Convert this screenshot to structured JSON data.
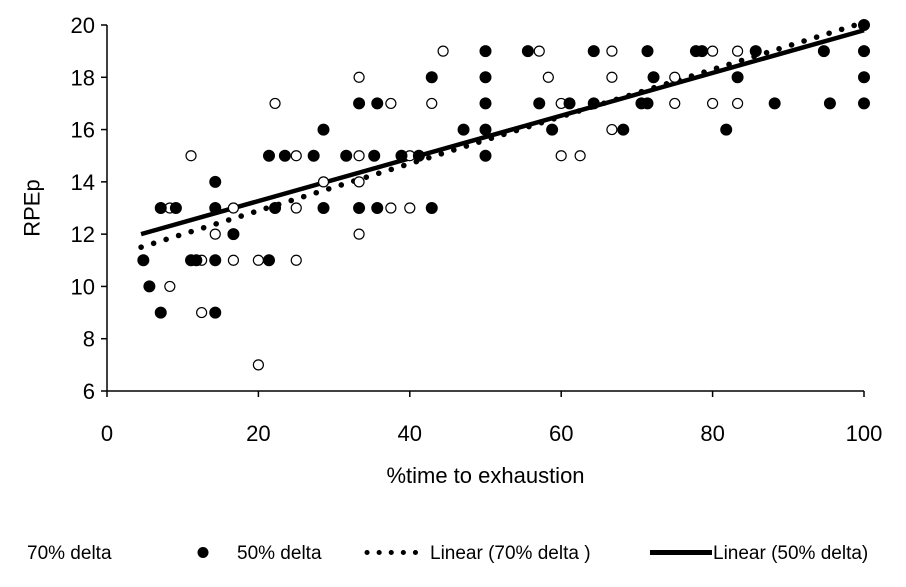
{
  "chart_data": {
    "type": "scatter",
    "xlabel": "%time to exhaustion",
    "ylabel": "RPEp",
    "xlim": [
      0,
      100
    ],
    "ylim": [
      6,
      20
    ],
    "xticks": [
      "0",
      "20",
      "40",
      "60",
      "80",
      "100"
    ],
    "yticks": [
      "6",
      "8",
      "10",
      "12",
      "14",
      "16",
      "18",
      "20"
    ],
    "grid": false,
    "legend_position": "bottom",
    "series": [
      {
        "name": "70% delta",
        "marker": "open-circle",
        "color": "#000000",
        "points": [
          [
            8.3,
            10
          ],
          [
            8.3,
            13
          ],
          [
            11.1,
            15
          ],
          [
            12.5,
            9
          ],
          [
            12.5,
            11
          ],
          [
            14.3,
            12
          ],
          [
            14.3,
            13
          ],
          [
            16.7,
            11
          ],
          [
            16.7,
            13
          ],
          [
            20,
            7
          ],
          [
            20,
            11
          ],
          [
            22.2,
            17
          ],
          [
            25,
            11
          ],
          [
            25,
            13
          ],
          [
            25,
            15
          ],
          [
            28.6,
            13
          ],
          [
            28.6,
            14
          ],
          [
            33.3,
            12
          ],
          [
            33.3,
            14
          ],
          [
            33.3,
            15
          ],
          [
            33.3,
            18
          ],
          [
            37.5,
            13
          ],
          [
            37.5,
            17
          ],
          [
            40,
            13
          ],
          [
            40,
            15
          ],
          [
            42.9,
            17
          ],
          [
            44.4,
            19
          ],
          [
            50,
            16
          ],
          [
            57.1,
            19
          ],
          [
            58.3,
            18
          ],
          [
            60,
            15
          ],
          [
            60,
            17
          ],
          [
            62.5,
            15
          ],
          [
            66.7,
            16
          ],
          [
            66.7,
            18
          ],
          [
            66.7,
            19
          ],
          [
            71.4,
            17
          ],
          [
            75,
            17
          ],
          [
            75,
            18
          ],
          [
            80,
            17
          ],
          [
            80,
            19
          ],
          [
            83.3,
            17
          ],
          [
            83.3,
            19
          ]
        ]
      },
      {
        "name": "50% delta",
        "marker": "filled-circle",
        "color": "#000000",
        "points": [
          [
            4.8,
            11
          ],
          [
            5.6,
            10
          ],
          [
            7.1,
            9
          ],
          [
            7.1,
            13
          ],
          [
            9.1,
            13
          ],
          [
            11.1,
            11
          ],
          [
            11.8,
            11
          ],
          [
            14.3,
            9
          ],
          [
            14.3,
            11
          ],
          [
            14.3,
            13
          ],
          [
            14.3,
            14
          ],
          [
            16.7,
            12
          ],
          [
            21.4,
            11
          ],
          [
            21.4,
            15
          ],
          [
            22.2,
            13
          ],
          [
            23.5,
            15
          ],
          [
            27.3,
            15
          ],
          [
            28.6,
            13
          ],
          [
            28.6,
            16
          ],
          [
            31.6,
            15
          ],
          [
            33.3,
            13
          ],
          [
            33.3,
            17
          ],
          [
            35.3,
            15
          ],
          [
            35.7,
            13
          ],
          [
            35.7,
            17
          ],
          [
            38.9,
            15
          ],
          [
            41.2,
            15
          ],
          [
            42.9,
            13
          ],
          [
            42.9,
            18
          ],
          [
            47.1,
            16
          ],
          [
            50,
            15
          ],
          [
            50,
            16
          ],
          [
            50,
            17
          ],
          [
            50,
            18
          ],
          [
            50,
            19
          ],
          [
            55.6,
            19
          ],
          [
            57.1,
            17
          ],
          [
            58.8,
            16
          ],
          [
            61.1,
            17
          ],
          [
            64.3,
            17
          ],
          [
            64.3,
            19
          ],
          [
            68.2,
            16
          ],
          [
            70.6,
            17
          ],
          [
            71.4,
            17
          ],
          [
            71.4,
            19
          ],
          [
            72.2,
            18
          ],
          [
            77.8,
            19
          ],
          [
            78.6,
            19
          ],
          [
            81.8,
            16
          ],
          [
            83.3,
            18
          ],
          [
            85.7,
            19
          ],
          [
            88.2,
            17
          ],
          [
            94.7,
            19
          ],
          [
            95.5,
            17
          ],
          [
            100,
            17
          ],
          [
            100,
            18
          ],
          [
            100,
            19
          ],
          [
            100,
            20
          ]
        ]
      },
      {
        "name": "Linear (70% delta )",
        "style": "dotted",
        "color": "#000000",
        "x": [
          4.5,
          100
        ],
        "y": [
          11.5,
          20.1
        ]
      },
      {
        "name": "Linear (50% delta)",
        "style": "solid",
        "color": "#000000",
        "x": [
          4.5,
          100
        ],
        "y": [
          12.0,
          19.8
        ]
      }
    ]
  }
}
